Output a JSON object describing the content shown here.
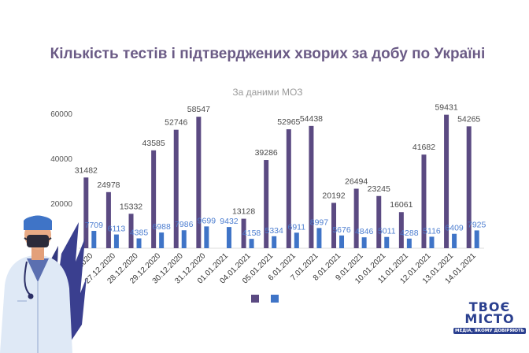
{
  "chart_data": {
    "type": "bar",
    "title": "Кількість тестів і підтверджених хворих за добу по Україні",
    "subtitle": "За даними МОЗ",
    "xlabel": "",
    "ylabel": "",
    "ylim": [
      0,
      60000
    ],
    "yticks": [
      0,
      20000,
      40000,
      60000
    ],
    "ytick_labels": [
      "0",
      "20000",
      "40000",
      "60000"
    ],
    "grid": false,
    "legend_position": "bottom",
    "categories": [
      "26.12.2020",
      "27.12.2020",
      "28.12.2020",
      "29.12.2020",
      "30.12.2020",
      "31.12.2020",
      "01.01.2021",
      "04.01.2021",
      "05.01.2021",
      "6.01.2021",
      "7.01.2021",
      "8.01.2021",
      "9.01.2021",
      "10.01.2021",
      "11.01.2021",
      "12.01.2021",
      "13.01.2021",
      "14.01.2021"
    ],
    "series": [
      {
        "color": "#5b4a82",
        "values": [
          31482,
          24978,
          15332,
          43585,
          52746,
          58547,
          null,
          13128,
          39286,
          52965,
          54438,
          20192,
          26494,
          23245,
          16061,
          41682,
          59431,
          54265
        ],
        "labels": [
          "31482",
          "24978",
          "15332",
          "43585",
          "52746",
          "58547",
          "",
          "13128",
          "39286",
          "52965",
          "54438",
          "20192",
          "26494",
          "23245",
          "16061",
          "41682",
          "59431",
          "54265"
        ]
      },
      {
        "color": "#3f74c7",
        "values": [
          7709,
          6113,
          4385,
          6988,
          7986,
          9699,
          9432,
          4158,
          5334,
          6911,
          8997,
          5676,
          4846,
          5011,
          4288,
          5116,
          6409,
          7925
        ],
        "labels": [
          "7709",
          "6113",
          "4385",
          "6988",
          "7986",
          "9699",
          "9432",
          "4158",
          "5334",
          "6911",
          "8997",
          "5676",
          "4846",
          "5011",
          "4288",
          "5116",
          "6409",
          "7925"
        ]
      }
    ]
  },
  "branding": {
    "name": "ТВОЄ\nМІСТО",
    "tagline": "МЕДІА, ЯКОМУ ДОВІРЯЮТЬ"
  }
}
